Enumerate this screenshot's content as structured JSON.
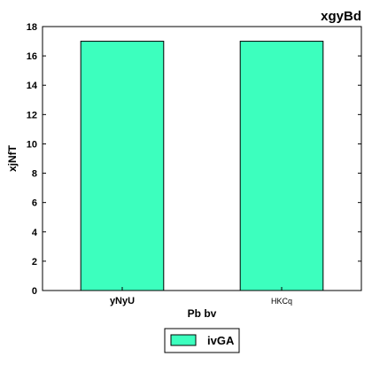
{
  "chart_data": {
    "type": "bar",
    "title": "xgyBd",
    "xlabel": "Pb bv",
    "ylabel": "xjNfT",
    "categories": [
      "yNyU",
      "HKCq"
    ],
    "series": [
      {
        "name": "ivGA",
        "values": [
          17,
          17
        ]
      }
    ],
    "ylim": [
      0,
      18
    ],
    "yticks": [
      0,
      2,
      4,
      6,
      8,
      10,
      12,
      14,
      16,
      18
    ],
    "grid": false,
    "legend_position": "bottom-center",
    "colors": {
      "bar_fill": "#3cffbe",
      "bar_stroke": "#000000",
      "axis": "#000000"
    }
  }
}
